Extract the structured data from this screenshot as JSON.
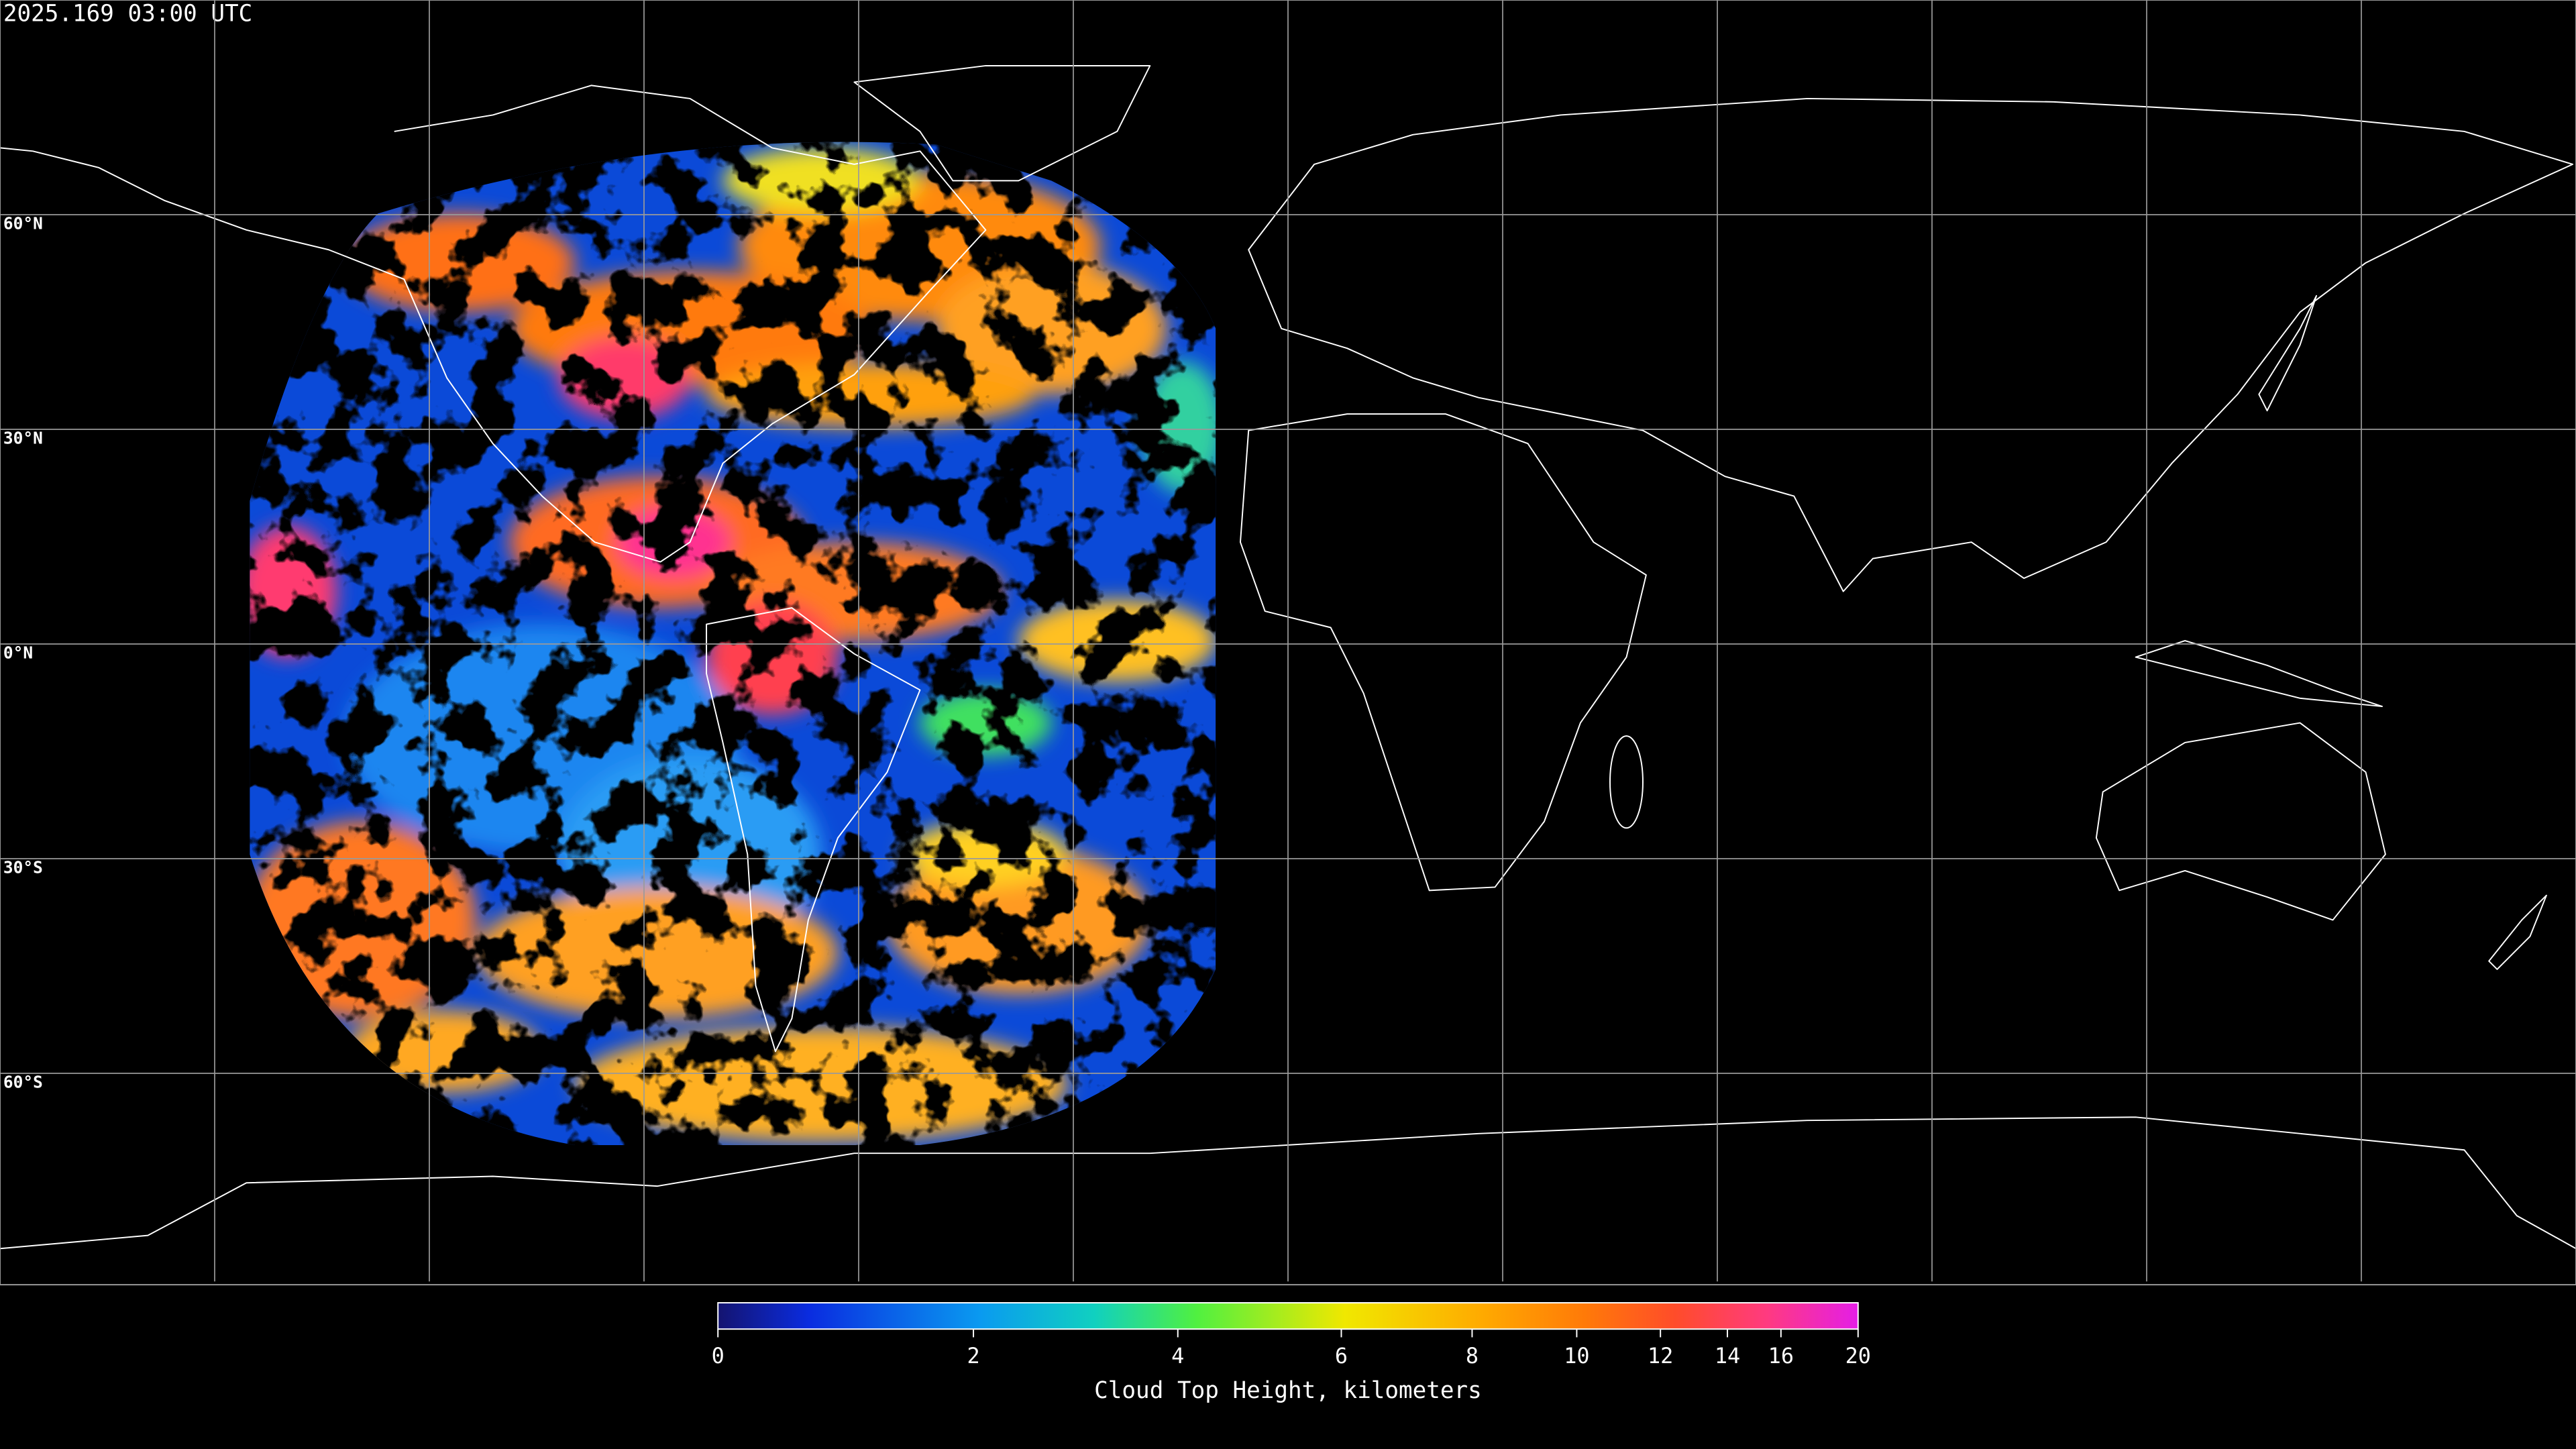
{
  "header": {
    "timestamp": "2025.169 03:00 UTC"
  },
  "map": {
    "ylim": [
      -90,
      90
    ],
    "grid": true,
    "lat_ticks": [
      {
        "value": 60,
        "label": "60°N"
      },
      {
        "value": 30,
        "label": "30°N"
      },
      {
        "value": 0,
        "label": "0°N"
      },
      {
        "value": -30,
        "label": "30°S"
      },
      {
        "value": -60,
        "label": "60°S"
      }
    ]
  },
  "colorbar": {
    "label": "Cloud Top Height, kilometers",
    "lim": [
      0,
      20
    ],
    "ticks": [
      0,
      2,
      4,
      6,
      8,
      10,
      12,
      14,
      16,
      20
    ]
  }
}
